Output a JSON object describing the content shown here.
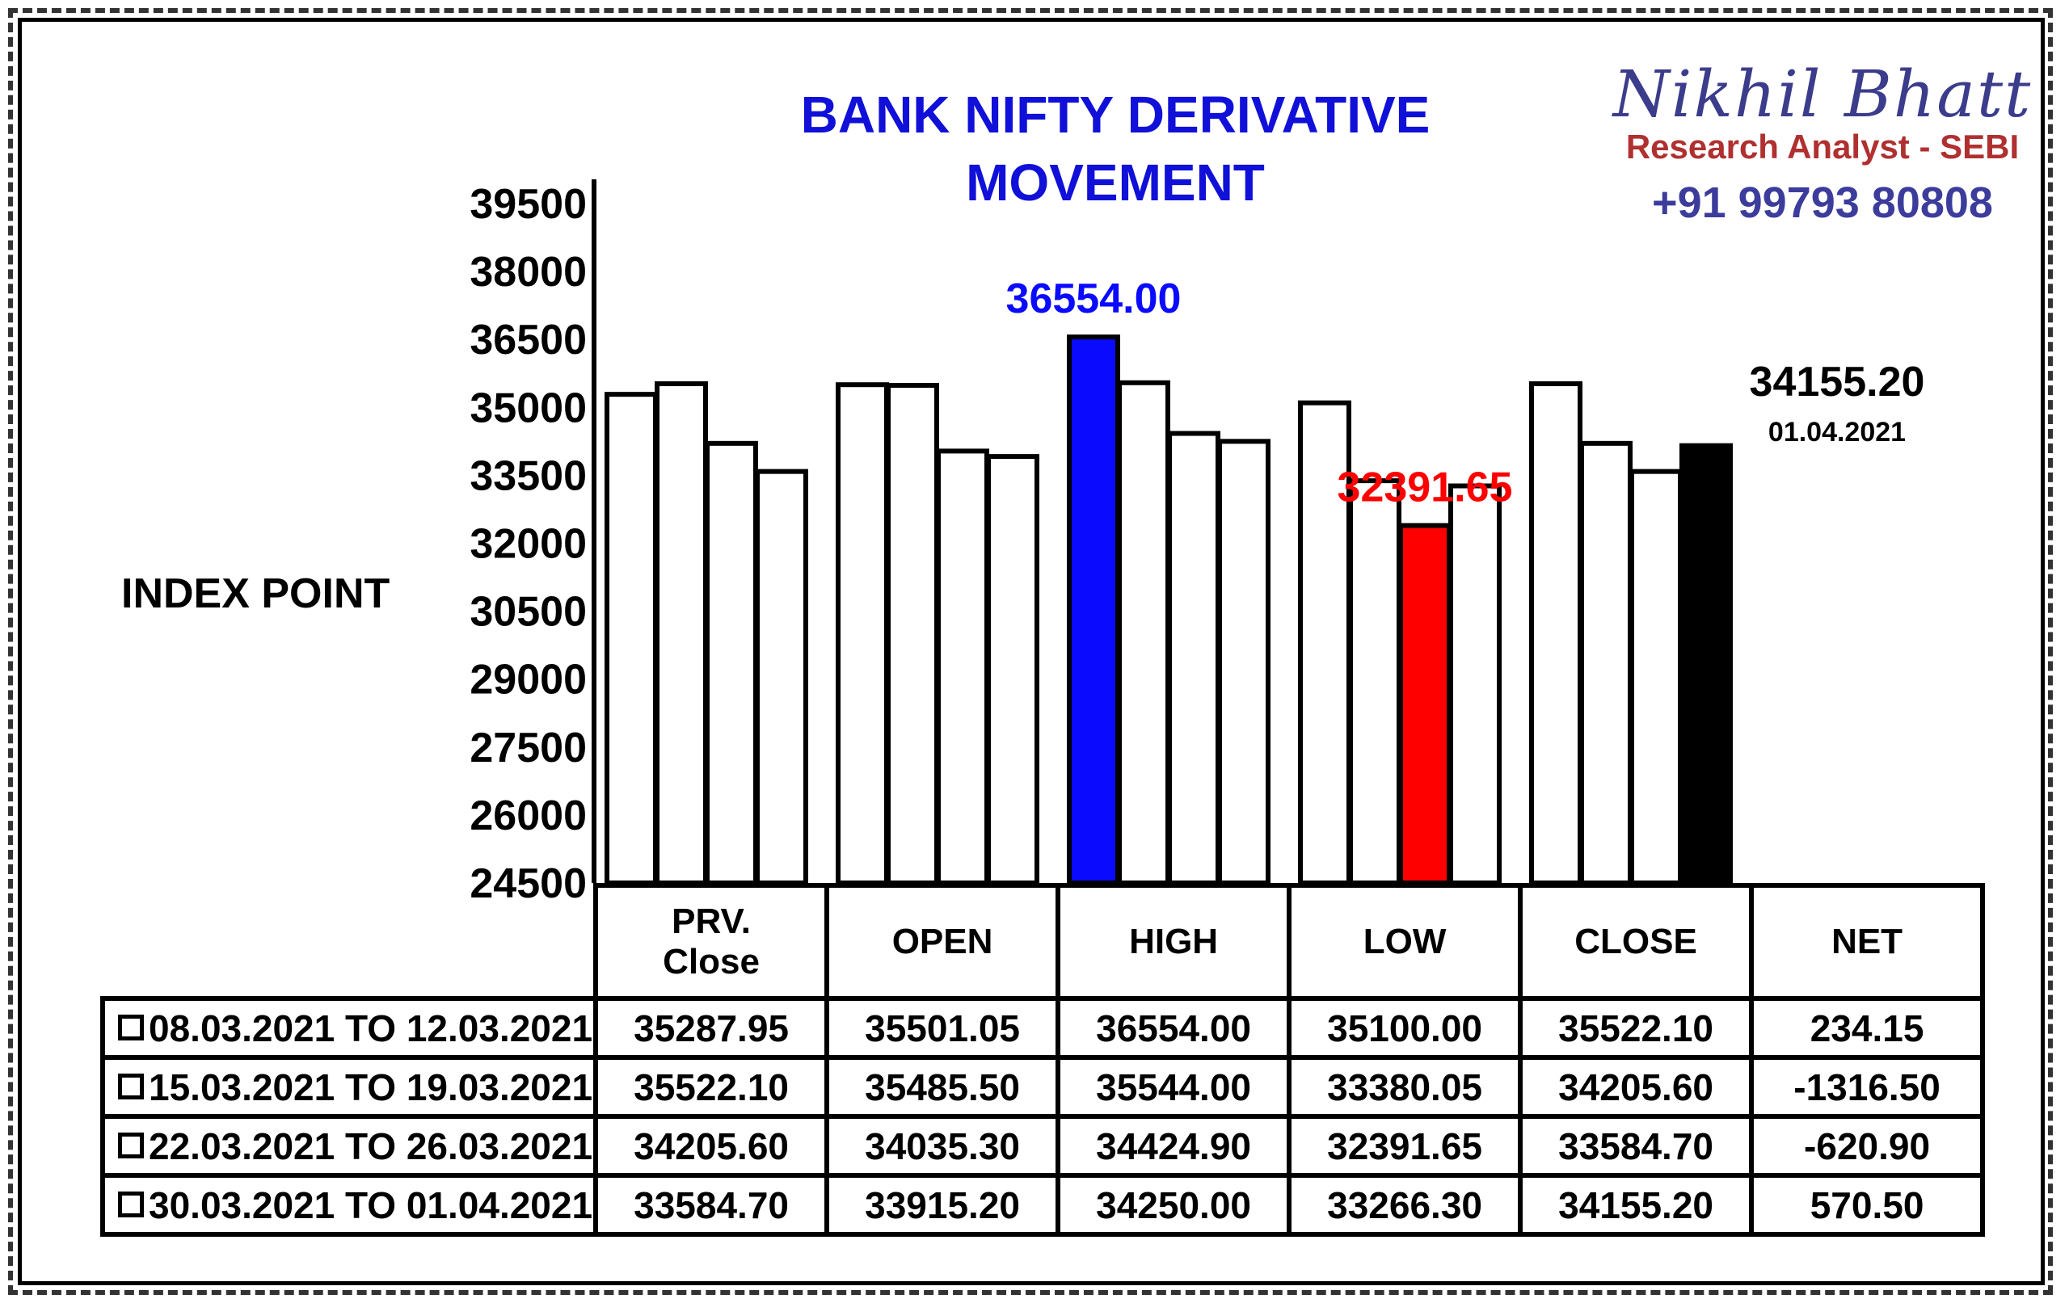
{
  "watermark": {
    "name": "Nikhil Bhatt",
    "role": "Research Analyst - SEBI",
    "phone": "+91 99793 80808"
  },
  "chart_data": {
    "type": "bar",
    "title": "BANK NIFTY DERIVATIVE MOVEMENT",
    "ylabel": "INDEX POINT",
    "ylim": [
      24500,
      39500
    ],
    "yticks": [
      39500,
      38000,
      36500,
      35000,
      33500,
      32000,
      30500,
      29000,
      27500,
      26000,
      24500
    ],
    "categories": [
      "PRV. Close",
      "OPEN",
      "HIGH",
      "LOW",
      "CLOSE"
    ],
    "series": [
      {
        "name": "08.03.2021 TO 12.03.2021",
        "values": [
          35287.95,
          35501.05,
          36554.0,
          35100.0,
          35522.1
        ]
      },
      {
        "name": "15.03.2021 TO 19.03.2021",
        "values": [
          35522.1,
          35485.5,
          35544.0,
          33380.05,
          34205.6
        ]
      },
      {
        "name": "22.03.2021 TO 26.03.2021",
        "values": [
          34205.6,
          34035.3,
          34424.9,
          32391.65,
          33584.7
        ]
      },
      {
        "name": "30.03.2021 TO 01.04.2021",
        "values": [
          33584.7,
          33915.2,
          34250.0,
          33266.3,
          34155.2
        ]
      }
    ],
    "highlights": [
      {
        "category": "HIGH",
        "series": 0,
        "color": "#0a0aff",
        "label": "36554.00"
      },
      {
        "category": "LOW",
        "series": 2,
        "color": "#ff0000",
        "label": "32391.65"
      },
      {
        "category": "CLOSE",
        "series": 3,
        "color": "#000000",
        "label": "34155.20",
        "sublabel": "01.04.2021"
      }
    ],
    "colors": {
      "default_bar": "#ffffff",
      "high": "#0a0aff",
      "low": "#ff0000",
      "close_latest": "#000000",
      "title": "#1010d8"
    }
  },
  "table": {
    "headers": [
      "PRV.\nClose",
      "OPEN",
      "HIGH",
      "LOW",
      "CLOSE",
      "NET"
    ],
    "rows": [
      {
        "label": "08.03.2021 TO 12.03.2021",
        "cells": [
          "35287.95",
          "35501.05",
          "36554.00",
          "35100.00",
          "35522.10",
          "234.15"
        ]
      },
      {
        "label": "15.03.2021 TO 19.03.2021",
        "cells": [
          "35522.10",
          "35485.50",
          "35544.00",
          "33380.05",
          "34205.60",
          "-1316.50"
        ]
      },
      {
        "label": "22.03.2021 TO 26.03.2021",
        "cells": [
          "34205.60",
          "34035.30",
          "34424.90",
          "32391.65",
          "33584.70",
          "-620.90"
        ]
      },
      {
        "label": "30.03.2021 TO 01.04.2021",
        "cells": [
          "33584.70",
          "33915.20",
          "34250.00",
          "33266.30",
          "34155.20",
          "570.50"
        ]
      }
    ]
  }
}
